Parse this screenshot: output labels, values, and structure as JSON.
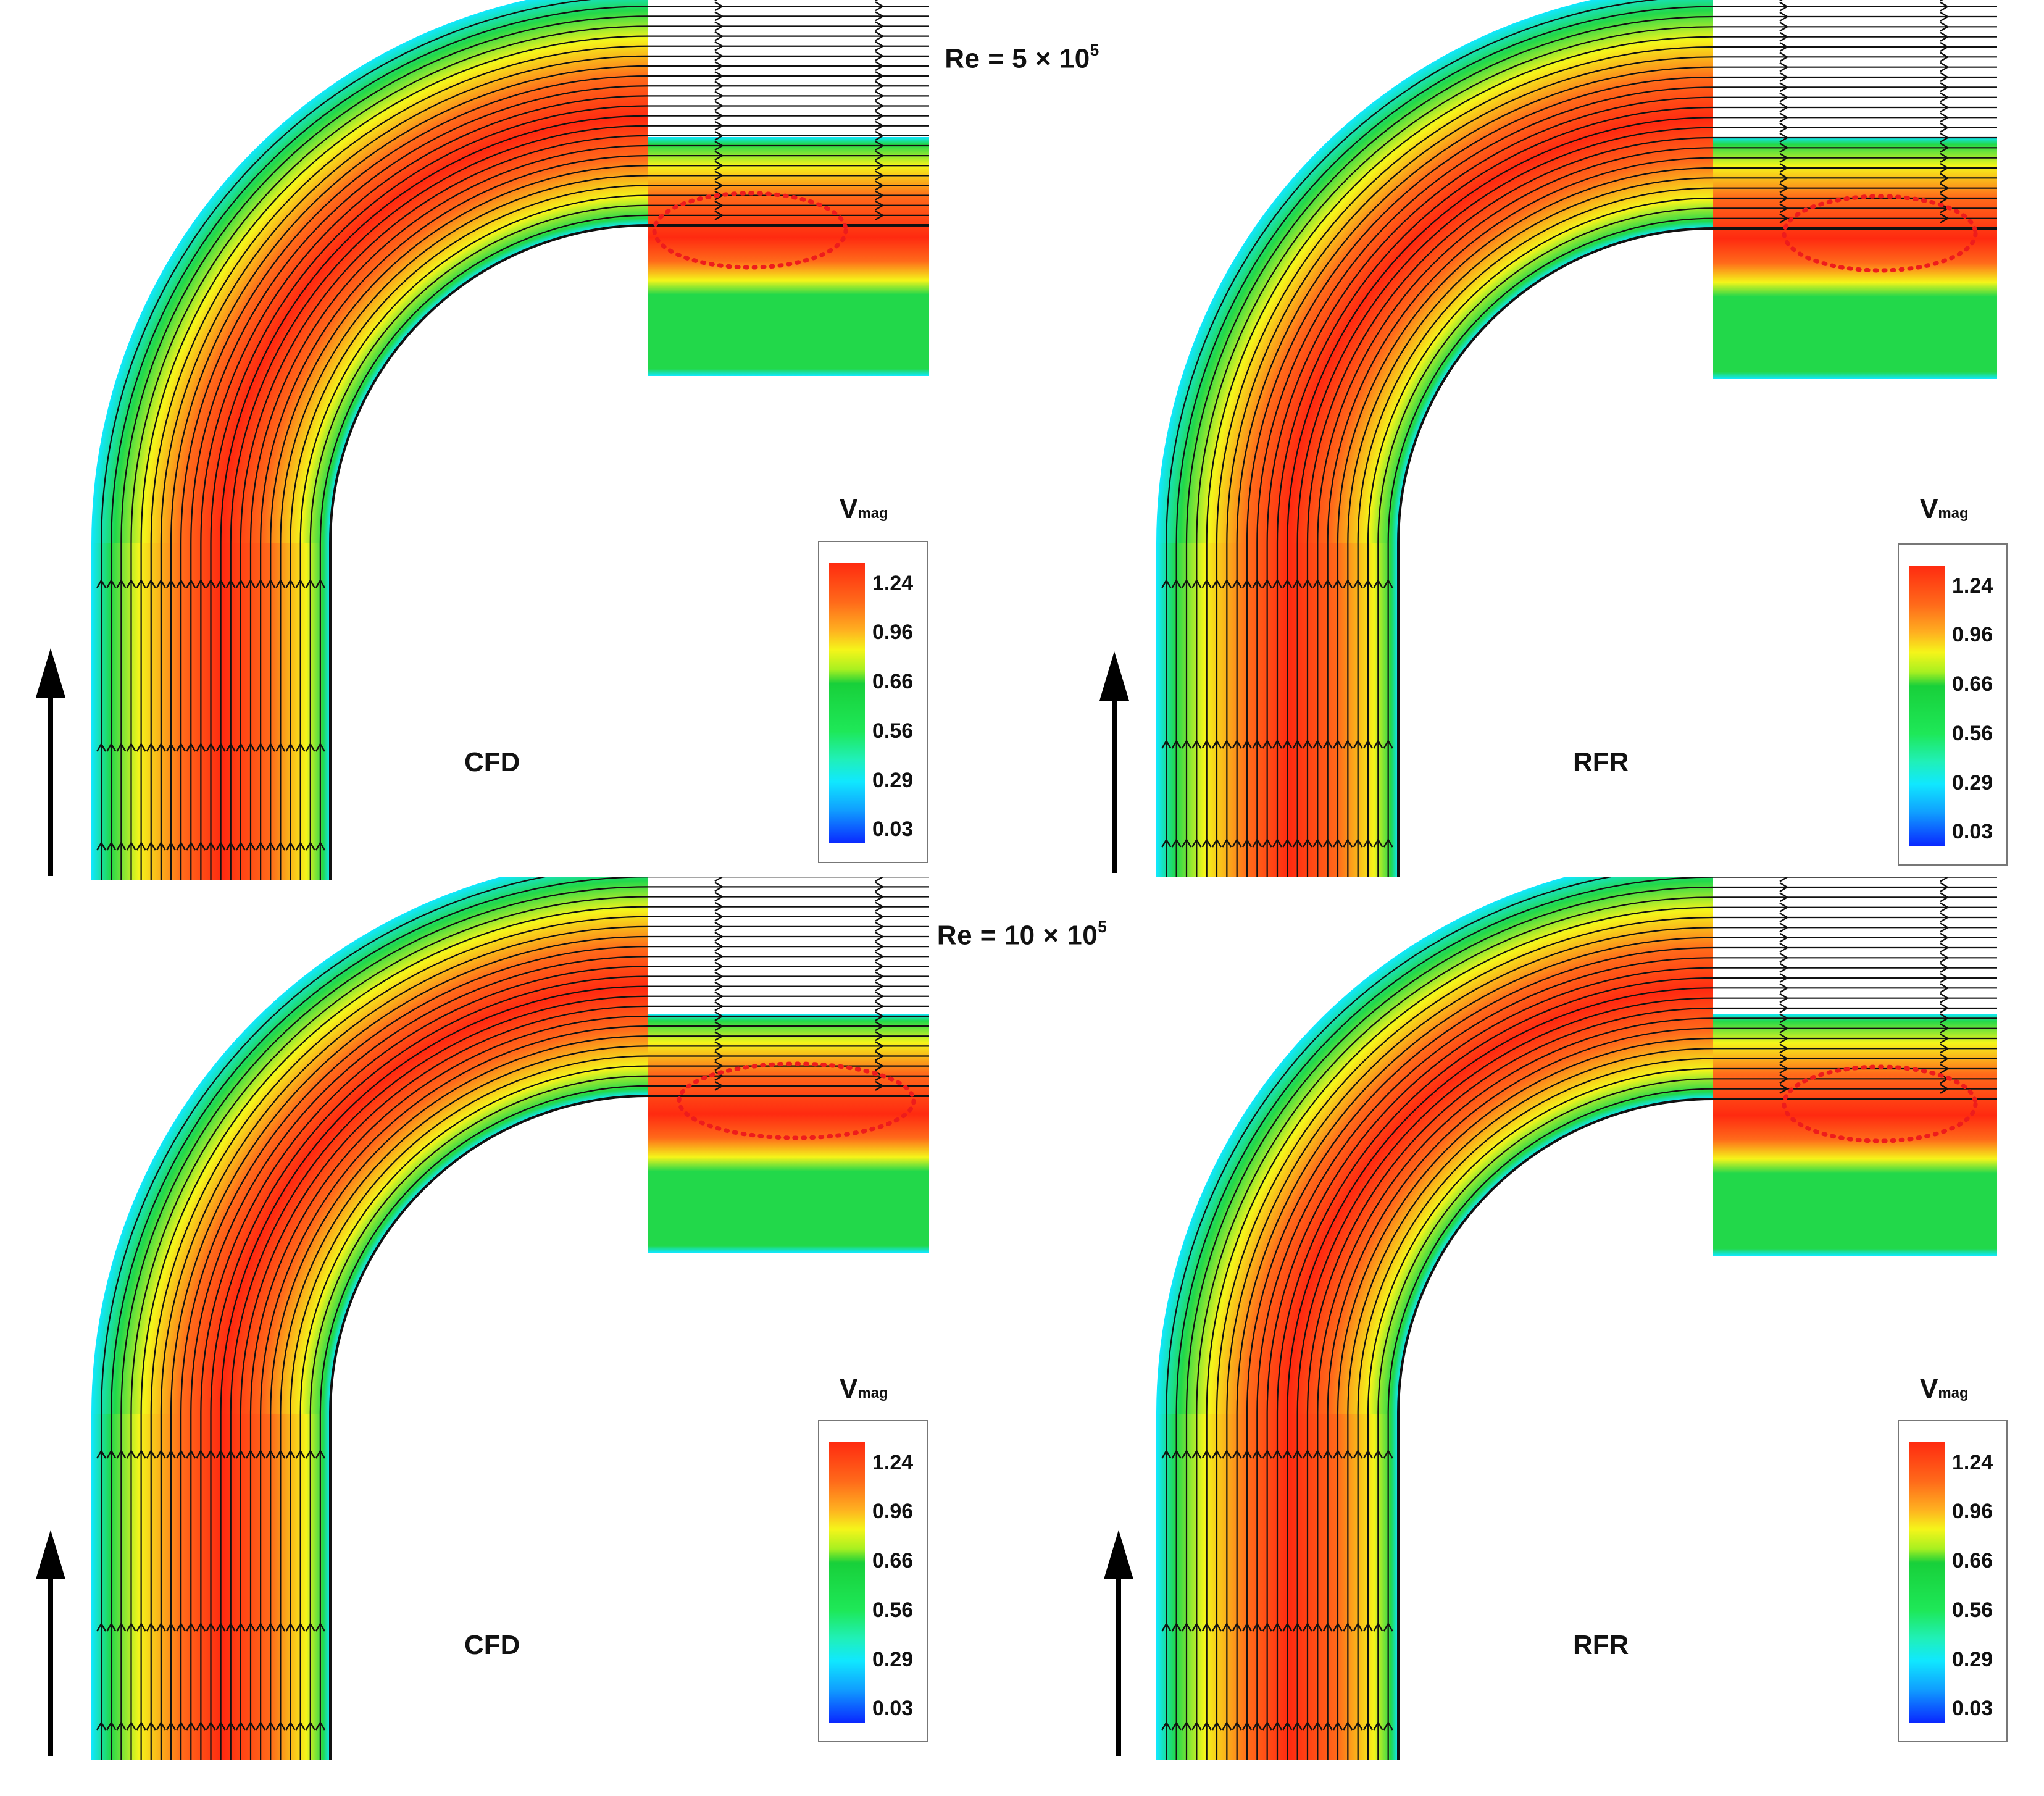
{
  "rows": [
    {
      "title_prefix": "Re = 5 × 10",
      "title_exp": "5",
      "panels": [
        {
          "method": "CFD"
        },
        {
          "method": "RFR"
        }
      ]
    },
    {
      "title_prefix": "Re = 10 × 10",
      "title_exp": "5",
      "panels": [
        {
          "method": "CFD"
        },
        {
          "method": "RFR"
        }
      ]
    }
  ],
  "legend": {
    "symbol": "V",
    "subscript": "mag",
    "values": [
      "1.24",
      "0.96",
      "0.66",
      "0.56",
      "0.29",
      "0.03"
    ]
  },
  "colors": {
    "high": "#ff2a10",
    "upper": "#ff6a1a",
    "mid_high": "#f5f51a",
    "mid": "#22d84a",
    "low": "#10e8ff",
    "lowest": "#0a28ff",
    "annotation": "#ee1c1c"
  }
}
